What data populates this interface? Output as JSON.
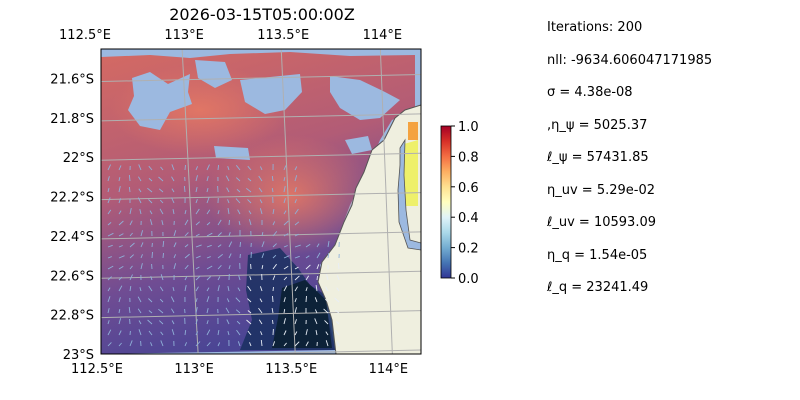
{
  "chart_data": {
    "type": "heatmap",
    "title": "2026-03-15T05:00:00Z",
    "xlabel": "",
    "ylabel": "",
    "x_ticks": [
      {
        "value": 112.5,
        "label": "112.5°E"
      },
      {
        "value": 113.0,
        "label": "113°E"
      },
      {
        "value": 113.5,
        "label": "113.5°E"
      },
      {
        "value": 114.0,
        "label": "114°E"
      }
    ],
    "y_ticks": [
      {
        "value": -21.6,
        "label": "21.6°S"
      },
      {
        "value": -21.8,
        "label": "21.8°S"
      },
      {
        "value": -22.0,
        "label": "22°S"
      },
      {
        "value": -22.2,
        "label": "22.2°S"
      },
      {
        "value": -22.4,
        "label": "22.4°S"
      },
      {
        "value": -22.6,
        "label": "22.6°S"
      },
      {
        "value": -22.8,
        "label": "22.8°S"
      },
      {
        "value": -23.0,
        "label": "23°S"
      }
    ],
    "xlim": [
      112.5,
      114.2
    ],
    "ylim": [
      -23.0,
      -21.45
    ],
    "grid": true,
    "colorbar": {
      "colormap": "RdYlBu_r",
      "range": [
        0.0,
        1.0
      ],
      "ticks": [
        "0.0",
        "0.2",
        "0.4",
        "0.6",
        "0.8",
        "1.0"
      ]
    },
    "colors": {
      "ocean": "#9cb9e0",
      "land": "#efefdf",
      "coast": "#555555",
      "field_high": "#e07360",
      "field_low": "#3d3f90",
      "gridline": "#b0b0b0"
    },
    "field_description_tags": [
      "sea-surface-field",
      "velocity-arrows",
      "coastline",
      "missing-data-mask"
    ]
  },
  "params": [
    {
      "key": "iterations",
      "text": "Iterations: 200"
    },
    {
      "key": "nll",
      "text": "nll: -9634.606047171985"
    },
    {
      "key": "sigma",
      "text": "σ = 4.38e-08"
    },
    {
      "key": "eta_psi",
      "text": ",η_ψ = 5025.37"
    },
    {
      "key": "ell_psi",
      "text": "ℓ_ψ = 57431.85"
    },
    {
      "key": "eta_uv",
      "text": "η_uv = 5.29e-02"
    },
    {
      "key": "ell_uv",
      "text": "ℓ_uv = 10593.09"
    },
    {
      "key": "eta_q",
      "text": "η_q = 1.54e-05"
    },
    {
      "key": "ell_q",
      "text": "ℓ_q = 23241.49"
    }
  ]
}
